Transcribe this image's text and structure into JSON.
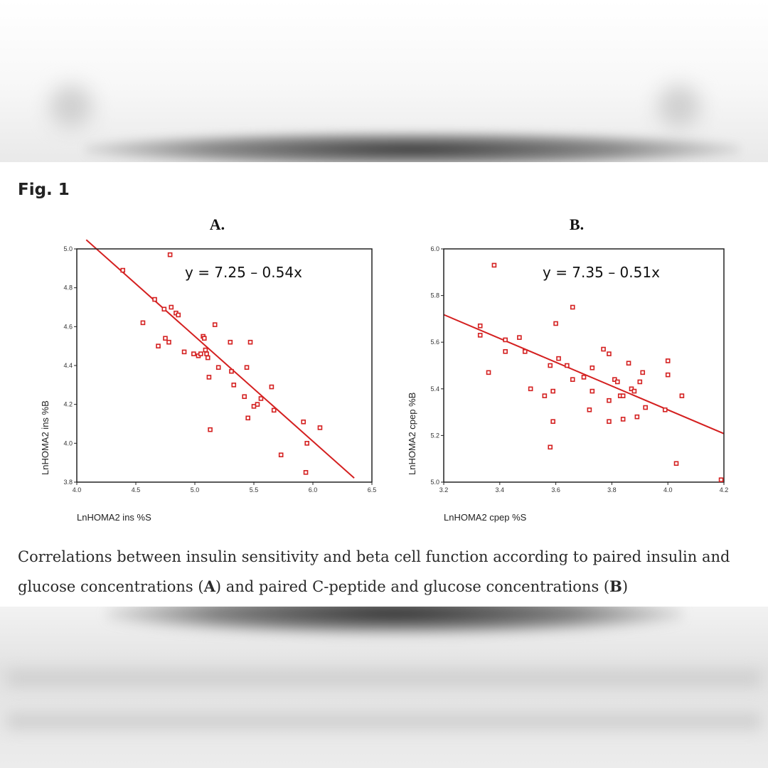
{
  "figure": {
    "label": "Fig. 1",
    "caption_parts": [
      {
        "text": "Correlations between insulin sensitivity and beta cell function according to paired insulin and glucose concentrations (",
        "bold": false
      },
      {
        "text": "A",
        "bold": true
      },
      {
        "text": ") and paired C-peptide and glucose concentrations (",
        "bold": false
      },
      {
        "text": "B",
        "bold": true
      },
      {
        "text": ")",
        "bold": false
      }
    ]
  },
  "colors": {
    "points": "#d42020",
    "line": "#d42020",
    "axis": "#222222"
  },
  "chart_data": [
    {
      "type": "scatter",
      "panel": "A.",
      "equation": "y = 7.25 – 0.54x",
      "xlabel": "LnHOMA2 ins %S",
      "ylabel": "LnHOMA2 ins %B",
      "xlim": [
        4.0,
        6.5
      ],
      "ylim": [
        3.8,
        5.0
      ],
      "xticks": [
        "4.0",
        "4.5",
        "5.0",
        "5.5",
        "6.0",
        "6.5"
      ],
      "yticks": [
        "3.8",
        "4.0",
        "4.2",
        "4.4",
        "4.6",
        "4.8",
        "5.0"
      ],
      "regression": {
        "intercept": 7.25,
        "slope": -0.54
      },
      "points": [
        [
          4.39,
          4.89
        ],
        [
          4.56,
          4.62
        ],
        [
          4.66,
          4.74
        ],
        [
          4.69,
          4.5
        ],
        [
          4.74,
          4.69
        ],
        [
          4.75,
          4.54
        ],
        [
          4.78,
          4.52
        ],
        [
          4.79,
          4.97
        ],
        [
          4.8,
          4.7
        ],
        [
          4.84,
          4.67
        ],
        [
          4.86,
          4.66
        ],
        [
          4.91,
          4.47
        ],
        [
          4.99,
          4.46
        ],
        [
          5.03,
          4.45
        ],
        [
          5.05,
          4.46
        ],
        [
          5.07,
          4.55
        ],
        [
          5.08,
          4.54
        ],
        [
          5.09,
          4.48
        ],
        [
          5.1,
          4.46
        ],
        [
          5.11,
          4.44
        ],
        [
          5.12,
          4.34
        ],
        [
          5.13,
          4.07
        ],
        [
          5.17,
          4.61
        ],
        [
          5.2,
          4.39
        ],
        [
          5.3,
          4.52
        ],
        [
          5.31,
          4.37
        ],
        [
          5.33,
          4.3
        ],
        [
          5.42,
          4.24
        ],
        [
          5.44,
          4.39
        ],
        [
          5.45,
          4.13
        ],
        [
          5.47,
          4.52
        ],
        [
          5.5,
          4.19
        ],
        [
          5.53,
          4.2
        ],
        [
          5.56,
          4.23
        ],
        [
          5.65,
          4.29
        ],
        [
          5.67,
          4.17
        ],
        [
          5.73,
          3.94
        ],
        [
          5.92,
          4.11
        ],
        [
          5.94,
          3.85
        ],
        [
          5.95,
          4.0
        ],
        [
          6.06,
          4.08
        ]
      ]
    },
    {
      "type": "scatter",
      "panel": "B.",
      "equation": "y = 7.35 – 0.51x",
      "xlabel": "LnHOMA2 cpep %S",
      "ylabel": "LnHOMA2 cpep %B",
      "xlim": [
        3.2,
        4.2
      ],
      "ylim": [
        5.0,
        6.0
      ],
      "xticks": [
        "3.2",
        "3.4",
        "3.6",
        "3.8",
        "4.0",
        "4.2"
      ],
      "yticks": [
        "5.0",
        "5.2",
        "5.4",
        "5.6",
        "5.8",
        "6.0"
      ],
      "regression": {
        "intercept": 7.35,
        "slope": -0.51
      },
      "points": [
        [
          3.33,
          5.63
        ],
        [
          3.33,
          5.67
        ],
        [
          3.36,
          5.47
        ],
        [
          3.38,
          5.93
        ],
        [
          3.42,
          5.56
        ],
        [
          3.42,
          5.61
        ],
        [
          3.47,
          5.62
        ],
        [
          3.49,
          5.56
        ],
        [
          3.51,
          5.4
        ],
        [
          3.56,
          5.37
        ],
        [
          3.58,
          5.5
        ],
        [
          3.58,
          5.15
        ],
        [
          3.59,
          5.26
        ],
        [
          3.59,
          5.39
        ],
        [
          3.6,
          5.68
        ],
        [
          3.61,
          5.53
        ],
        [
          3.64,
          5.5
        ],
        [
          3.66,
          5.44
        ],
        [
          3.66,
          5.75
        ],
        [
          3.7,
          5.45
        ],
        [
          3.72,
          5.31
        ],
        [
          3.73,
          5.49
        ],
        [
          3.73,
          5.39
        ],
        [
          3.77,
          5.57
        ],
        [
          3.79,
          5.55
        ],
        [
          3.79,
          5.35
        ],
        [
          3.79,
          5.26
        ],
        [
          3.81,
          5.44
        ],
        [
          3.82,
          5.43
        ],
        [
          3.83,
          5.37
        ],
        [
          3.84,
          5.37
        ],
        [
          3.84,
          5.27
        ],
        [
          3.86,
          5.51
        ],
        [
          3.87,
          5.4
        ],
        [
          3.88,
          5.39
        ],
        [
          3.89,
          5.28
        ],
        [
          3.9,
          5.43
        ],
        [
          3.91,
          5.47
        ],
        [
          3.92,
          5.32
        ],
        [
          3.99,
          5.31
        ],
        [
          4.0,
          5.52
        ],
        [
          4.0,
          5.46
        ],
        [
          4.03,
          5.08
        ],
        [
          4.05,
          5.37
        ],
        [
          4.19,
          5.01
        ]
      ]
    }
  ]
}
